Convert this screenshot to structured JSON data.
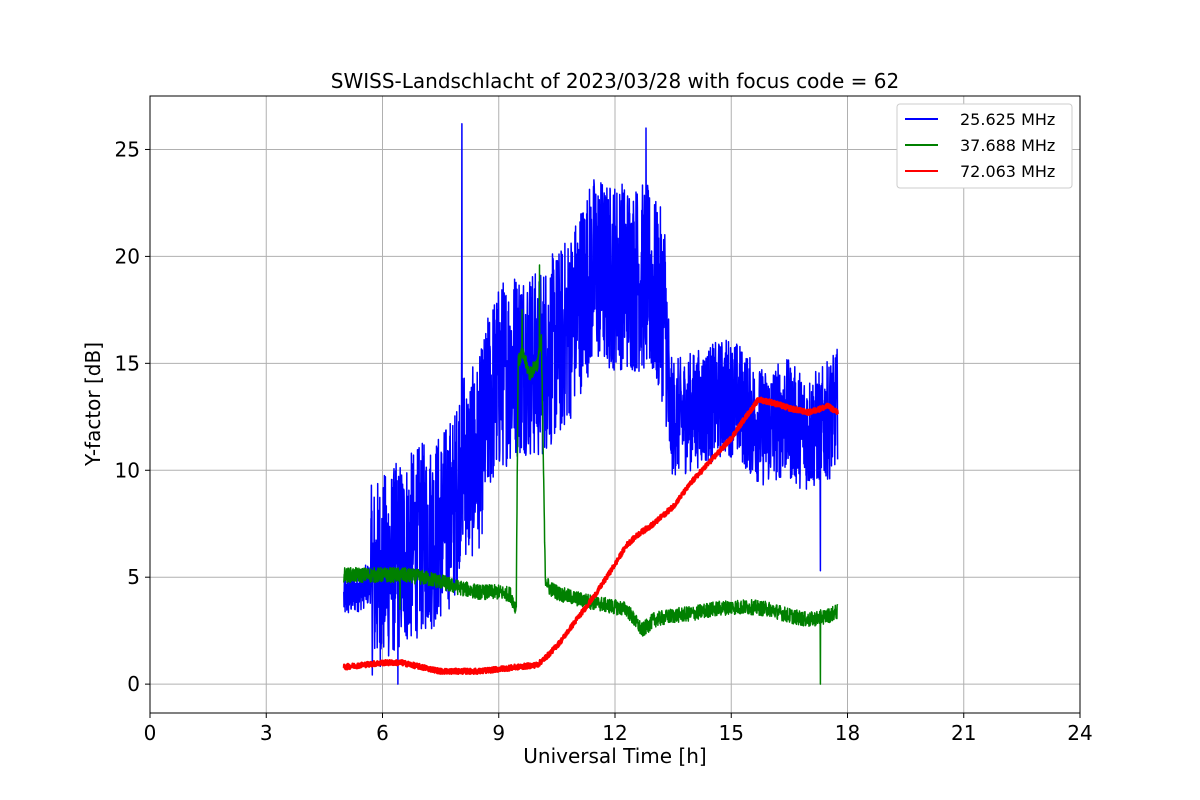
{
  "chart_data": {
    "type": "line",
    "title": "SWISS-Landschlacht of 2023/03/28 with focus code = 62",
    "xlabel": "Universal Time [h]",
    "ylabel": "Y-factor [dB]",
    "xlim": [
      0,
      24
    ],
    "ylim": [
      -1.35,
      27.5
    ],
    "xticks": [
      0,
      3,
      6,
      9,
      12,
      15,
      18,
      21,
      24
    ],
    "yticks": [
      0,
      5,
      10,
      15,
      20,
      25
    ],
    "grid": true,
    "legend_position": "top-right",
    "series": [
      {
        "name": "25.625 MHz",
        "color": "#0000ff",
        "x": [
          5.0,
          5.3,
          5.6,
          5.9,
          6.2,
          6.4,
          6.7,
          7.0,
          7.3,
          7.6,
          7.9,
          8.05,
          8.2,
          8.5,
          8.8,
          9.1,
          9.4,
          9.7,
          10.0,
          10.3,
          10.6,
          10.9,
          11.2,
          11.5,
          11.8,
          12.1,
          12.4,
          12.8,
          13.1,
          13.3,
          13.4,
          13.7,
          14.0,
          14.3,
          14.6,
          14.9,
          15.2,
          15.5,
          15.8,
          16.1,
          16.4,
          16.7,
          17.0,
          17.3,
          17.6,
          17.75
        ],
        "y": [
          4.0,
          4.3,
          4.6,
          5.2,
          5.6,
          6.0,
          6.3,
          6.8,
          7.0,
          7.6,
          8.5,
          11.0,
          10.0,
          10.8,
          13.5,
          14.5,
          15.0,
          15.2,
          14.8,
          15.5,
          16.0,
          17.0,
          18.5,
          19.5,
          19.0,
          19.2,
          19.0,
          19.0,
          18.0,
          17.5,
          12.5,
          12.5,
          12.8,
          13.0,
          13.2,
          13.5,
          13.2,
          12.5,
          12.0,
          12.2,
          12.5,
          12.0,
          11.8,
          12.0,
          12.5,
          13.0
        ],
        "peaks": [
          {
            "x": 8.05,
            "y": 26.2
          },
          {
            "x": 12.8,
            "y": 26.0
          },
          {
            "x": 6.4,
            "y": 0.0
          },
          {
            "x": 17.3,
            "y": 5.3
          }
        ]
      },
      {
        "name": "37.688 MHz",
        "color": "#008000",
        "x": [
          5.0,
          5.5,
          6.0,
          6.5,
          7.0,
          7.5,
          7.8,
          8.0,
          8.5,
          9.0,
          9.3,
          9.45,
          9.5,
          9.6,
          9.8,
          10.0,
          10.1,
          10.2,
          10.3,
          10.6,
          11.0,
          11.5,
          12.0,
          12.3,
          12.5,
          12.7,
          13.0,
          13.5,
          14.0,
          14.5,
          15.0,
          15.5,
          16.0,
          16.5,
          17.0,
          17.5,
          17.75
        ],
        "y": [
          5.1,
          5.1,
          5.1,
          5.1,
          5.0,
          4.8,
          4.6,
          4.5,
          4.3,
          4.3,
          4.2,
          3.5,
          15.0,
          15.5,
          14.5,
          15.0,
          16.0,
          5.0,
          4.5,
          4.2,
          4.0,
          3.8,
          3.6,
          3.5,
          3.0,
          2.5,
          3.0,
          3.2,
          3.3,
          3.5,
          3.6,
          3.6,
          3.5,
          3.2,
          3.0,
          3.2,
          3.4
        ],
        "peaks": [
          {
            "x": 10.05,
            "y": 19.6
          },
          {
            "x": 9.6,
            "y": 17.5
          },
          {
            "x": 17.3,
            "y": 0.0
          },
          {
            "x": 6.45,
            "y": 3.5
          }
        ]
      },
      {
        "name": "72.063 MHz",
        "color": "#ff0000",
        "x": [
          5.0,
          5.5,
          6.0,
          6.5,
          7.0,
          7.5,
          8.0,
          8.5,
          9.0,
          9.5,
          10.0,
          10.3,
          10.6,
          11.0,
          11.5,
          12.0,
          12.3,
          12.6,
          13.0,
          13.5,
          14.0,
          14.5,
          15.0,
          15.3,
          15.7,
          16.0,
          16.5,
          17.0,
          17.5,
          17.75
        ],
        "y": [
          0.8,
          0.9,
          1.0,
          1.0,
          0.8,
          0.6,
          0.6,
          0.6,
          0.7,
          0.8,
          0.9,
          1.4,
          2.0,
          3.0,
          4.2,
          5.6,
          6.5,
          7.0,
          7.5,
          8.3,
          9.5,
          10.5,
          11.5,
          12.3,
          13.3,
          13.2,
          12.9,
          12.7,
          13.0,
          12.7
        ]
      }
    ]
  }
}
